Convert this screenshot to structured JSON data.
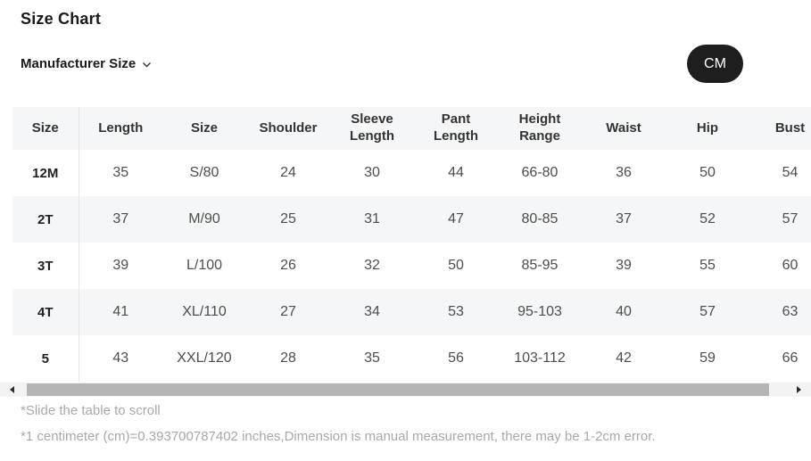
{
  "page": {
    "title": "Size Chart",
    "manufacturer_size_label": "Manufacturer Size",
    "unit_button": "CM"
  },
  "table": {
    "columns": [
      "Size",
      "Length",
      "Size",
      "Shoulder",
      "Sleeve Length",
      "Pant Length",
      "Height Range",
      "Waist",
      "Hip",
      "Bust"
    ],
    "rows": [
      {
        "size": "12M",
        "values": [
          "35",
          "S/80",
          "24",
          "30",
          "44",
          "66-80",
          "36",
          "50",
          "54"
        ]
      },
      {
        "size": "2T",
        "values": [
          "37",
          "M/90",
          "25",
          "31",
          "47",
          "80-85",
          "37",
          "52",
          "57"
        ]
      },
      {
        "size": "3T",
        "values": [
          "39",
          "L/100",
          "26",
          "32",
          "50",
          "85-95",
          "39",
          "55",
          "60"
        ]
      },
      {
        "size": "4T",
        "values": [
          "41",
          "XL/110",
          "27",
          "34",
          "53",
          "95-103",
          "40",
          "57",
          "63"
        ]
      },
      {
        "size": "5",
        "values": [
          "43",
          "XXL/120",
          "28",
          "35",
          "56",
          "103-112",
          "42",
          "59",
          "66"
        ]
      }
    ]
  },
  "footer": {
    "scroll_hint": "*Slide the table to scroll",
    "conversion_note": "*1 centimeter (cm)=0.393700787402 inches,Dimension is manual measurement, there may be 1-2cm error."
  },
  "colors": {
    "unit_button_bg": "#1e1e1e",
    "unit_button_text": "#ffffff",
    "header_row_bg": "#f5f6f7",
    "alt_row_bg": "#f5f6f7",
    "header_text": "#333333",
    "cell_text": "#4d4d4d",
    "row_label_text": "#1f1f1f",
    "divider": "#e6e6e6",
    "note_text": "#a8a8a8",
    "scrollbar_track": "#f3f3f3",
    "scrollbar_thumb": "#b5b5b5"
  }
}
